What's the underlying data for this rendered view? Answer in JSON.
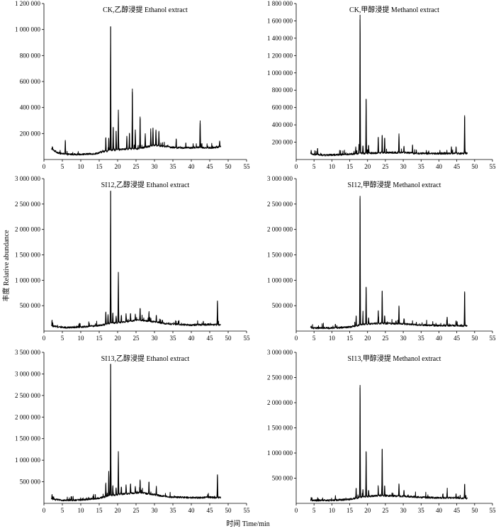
{
  "figure": {
    "ylabel": "丰度 Relative abundance",
    "xlabel": "时间 Time/min"
  },
  "chart_data": [
    {
      "type": "line",
      "title": "CK,乙醇浸提 Ethanol extract",
      "xlim": [
        0,
        55
      ],
      "xticks": [
        0,
        5,
        10,
        15,
        20,
        25,
        30,
        35,
        40,
        45,
        50,
        55
      ],
      "ylim": [
        0,
        1200000
      ],
      "yticks": [
        200000,
        400000,
        600000,
        800000,
        1000000,
        1200000
      ],
      "ytick_labels": [
        "200 000",
        "400 000",
        "600 000",
        "800 000",
        "1 000 000",
        "1 200 000"
      ],
      "x_range": [
        2,
        48
      ],
      "baseline": [
        [
          2,
          80000
        ],
        [
          4,
          50000
        ],
        [
          6,
          40000
        ],
        [
          10,
          40000
        ],
        [
          14,
          45000
        ],
        [
          16,
          60000
        ],
        [
          18,
          70000
        ],
        [
          22,
          80000
        ],
        [
          26,
          85000
        ],
        [
          30,
          110000
        ],
        [
          33,
          100000
        ],
        [
          36,
          90000
        ],
        [
          40,
          90000
        ],
        [
          42,
          95000
        ],
        [
          44,
          90000
        ],
        [
          46,
          90000
        ],
        [
          48,
          100000
        ]
      ],
      "peaks": [
        [
          2.3,
          100000
        ],
        [
          5.8,
          150000
        ],
        [
          16.8,
          170000
        ],
        [
          17.6,
          160000
        ],
        [
          18.1,
          1020000
        ],
        [
          18.8,
          250000
        ],
        [
          19.6,
          220000
        ],
        [
          20.2,
          360000
        ],
        [
          22.5,
          180000
        ],
        [
          23.2,
          200000
        ],
        [
          24.0,
          545000
        ],
        [
          24.8,
          230000
        ],
        [
          26.1,
          330000
        ],
        [
          27.5,
          200000
        ],
        [
          29.0,
          210000
        ],
        [
          29.6,
          240000
        ],
        [
          30.4,
          230000
        ],
        [
          31.2,
          220000
        ],
        [
          35.9,
          160000
        ],
        [
          42.4,
          300000
        ],
        [
          47.7,
          140000
        ]
      ]
    },
    {
      "type": "line",
      "title": "CK,甲醇浸提 Methanol extract",
      "xlim": [
        0,
        55
      ],
      "xticks": [
        0,
        5,
        10,
        15,
        20,
        25,
        30,
        35,
        40,
        45,
        50,
        55
      ],
      "ylim": [
        0,
        1800000
      ],
      "yticks": [
        200000,
        400000,
        600000,
        800000,
        1000000,
        1200000,
        1400000,
        1600000,
        1800000
      ],
      "ytick_labels": [
        "200 000",
        "400 000",
        "600 000",
        "800 000",
        "1 000 000",
        "1 200 000",
        "1 400 000",
        "1 600 000",
        "1 800 000"
      ],
      "x_range": [
        4,
        48
      ],
      "baseline": [
        [
          4,
          60000
        ],
        [
          8,
          50000
        ],
        [
          14,
          60000
        ],
        [
          18,
          70000
        ],
        [
          22,
          75000
        ],
        [
          26,
          80000
        ],
        [
          30,
          80000
        ],
        [
          34,
          70000
        ],
        [
          40,
          70000
        ],
        [
          44,
          70000
        ],
        [
          48,
          70000
        ]
      ],
      "peaks": [
        [
          4.2,
          110000
        ],
        [
          6.0,
          130000
        ],
        [
          16.7,
          150000
        ],
        [
          17.6,
          170000
        ],
        [
          17.9,
          1670000
        ],
        [
          18.7,
          160000
        ],
        [
          19.6,
          700000
        ],
        [
          20.3,
          160000
        ],
        [
          23.0,
          260000
        ],
        [
          24.1,
          280000
        ],
        [
          24.8,
          250000
        ],
        [
          28.8,
          300000
        ],
        [
          30.2,
          150000
        ],
        [
          32.6,
          160000
        ],
        [
          43.5,
          150000
        ],
        [
          44.8,
          150000
        ],
        [
          47.2,
          510000
        ]
      ]
    },
    {
      "type": "line",
      "title": "SI12,乙醇浸提 Ethanol extract",
      "xlim": [
        0,
        55
      ],
      "xticks": [
        0,
        5,
        10,
        15,
        20,
        25,
        30,
        35,
        40,
        45,
        50,
        55
      ],
      "ylim": [
        0,
        3000000
      ],
      "yticks": [
        500000,
        1000000,
        1500000,
        2000000,
        2500000,
        3000000
      ],
      "ytick_labels": [
        "500 000",
        "1 000 000",
        "1 500 000",
        "2 000 000",
        "2 500 000",
        "3 000 000"
      ],
      "x_range": [
        2,
        48
      ],
      "baseline": [
        [
          2,
          100000
        ],
        [
          5,
          70000
        ],
        [
          10,
          80000
        ],
        [
          15,
          110000
        ],
        [
          18,
          150000
        ],
        [
          22,
          180000
        ],
        [
          26,
          220000
        ],
        [
          30,
          180000
        ],
        [
          34,
          140000
        ],
        [
          40,
          120000
        ],
        [
          45,
          130000
        ],
        [
          48,
          120000
        ]
      ],
      "peaks": [
        [
          2.2,
          200000
        ],
        [
          16.8,
          380000
        ],
        [
          17.4,
          330000
        ],
        [
          18.1,
          2750000
        ],
        [
          18.7,
          350000
        ],
        [
          19.6,
          300000
        ],
        [
          20.2,
          1150000
        ],
        [
          21.0,
          300000
        ],
        [
          22.3,
          330000
        ],
        [
          23.5,
          350000
        ],
        [
          24.8,
          320000
        ],
        [
          26.1,
          450000
        ],
        [
          28.5,
          350000
        ],
        [
          30.5,
          300000
        ],
        [
          47.1,
          600000
        ]
      ]
    },
    {
      "type": "line",
      "title": "SI12,甲醇浸提 Methanol extract",
      "xlim": [
        0,
        55
      ],
      "xticks": [
        0,
        5,
        10,
        15,
        20,
        25,
        30,
        35,
        40,
        45,
        50,
        55
      ],
      "ylim": [
        0,
        3000000
      ],
      "yticks": [
        500000,
        1000000,
        1500000,
        2000000,
        2500000,
        3000000
      ],
      "ytick_labels": [
        "500 000",
        "1 000 000",
        "1 500 000",
        "2 000 000",
        "2 500 000",
        "3 000 000"
      ],
      "x_range": [
        4,
        48
      ],
      "baseline": [
        [
          4,
          60000
        ],
        [
          10,
          60000
        ],
        [
          15,
          80000
        ],
        [
          18,
          120000
        ],
        [
          22,
          150000
        ],
        [
          26,
          150000
        ],
        [
          30,
          140000
        ],
        [
          35,
          120000
        ],
        [
          40,
          110000
        ],
        [
          44,
          110000
        ],
        [
          48,
          100000
        ]
      ],
      "peaks": [
        [
          4.2,
          100000
        ],
        [
          11.0,
          140000
        ],
        [
          16.8,
          300000
        ],
        [
          17.9,
          2660000
        ],
        [
          18.7,
          300000
        ],
        [
          19.6,
          870000
        ],
        [
          20.3,
          250000
        ],
        [
          23.0,
          400000
        ],
        [
          24.1,
          790000
        ],
        [
          24.8,
          300000
        ],
        [
          28.8,
          500000
        ],
        [
          30.2,
          250000
        ],
        [
          42.3,
          280000
        ],
        [
          44.8,
          200000
        ],
        [
          47.2,
          780000
        ]
      ]
    },
    {
      "type": "line",
      "title": "SI13,乙醇浸提 Ethanol extract",
      "xlim": [
        0,
        55
      ],
      "xticks": [
        0,
        5,
        10,
        15,
        20,
        25,
        30,
        35,
        40,
        45,
        50,
        55
      ],
      "ylim": [
        0,
        3500000
      ],
      "yticks": [
        500000,
        1000000,
        1500000,
        2000000,
        2500000,
        3000000,
        3500000
      ],
      "ytick_labels": [
        "500 000",
        "1 000 000",
        "1 500 000",
        "2 000 000",
        "2 500 000",
        "3 000 000",
        "3 500 000"
      ],
      "x_range": [
        2,
        48
      ],
      "baseline": [
        [
          2,
          100000
        ],
        [
          5,
          70000
        ],
        [
          10,
          80000
        ],
        [
          15,
          120000
        ],
        [
          18,
          180000
        ],
        [
          22,
          220000
        ],
        [
          26,
          250000
        ],
        [
          30,
          200000
        ],
        [
          34,
          150000
        ],
        [
          40,
          130000
        ],
        [
          45,
          140000
        ],
        [
          48,
          130000
        ]
      ],
      "peaks": [
        [
          2.2,
          200000
        ],
        [
          16.8,
          480000
        ],
        [
          17.6,
          750000
        ],
        [
          18.1,
          3230000
        ],
        [
          18.7,
          400000
        ],
        [
          19.6,
          350000
        ],
        [
          20.2,
          1200000
        ],
        [
          21.0,
          380000
        ],
        [
          22.3,
          420000
        ],
        [
          23.5,
          450000
        ],
        [
          24.8,
          400000
        ],
        [
          26.1,
          550000
        ],
        [
          28.5,
          500000
        ],
        [
          30.5,
          350000
        ],
        [
          47.1,
          670000
        ]
      ]
    },
    {
      "type": "line",
      "title": "SI13,甲醇浸提 Methanol extract",
      "xlim": [
        0,
        55
      ],
      "xticks": [
        0,
        5,
        10,
        15,
        20,
        25,
        30,
        35,
        40,
        45,
        50,
        55
      ],
      "ylim": [
        0,
        3000000
      ],
      "yticks": [
        500000,
        1000000,
        1500000,
        2000000,
        2500000,
        3000000
      ],
      "ytick_labels": [
        "500 000",
        "1 000 000",
        "1 500 000",
        "2 000 000",
        "2 500 000",
        "3 000 000"
      ],
      "x_range": [
        4,
        48
      ],
      "baseline": [
        [
          4,
          60000
        ],
        [
          10,
          60000
        ],
        [
          15,
          80000
        ],
        [
          18,
          120000
        ],
        [
          22,
          150000
        ],
        [
          26,
          150000
        ],
        [
          30,
          140000
        ],
        [
          35,
          120000
        ],
        [
          40,
          110000
        ],
        [
          44,
          110000
        ],
        [
          48,
          100000
        ]
      ],
      "peaks": [
        [
          4.2,
          100000
        ],
        [
          11.0,
          130000
        ],
        [
          16.8,
          300000
        ],
        [
          17.9,
          2350000
        ],
        [
          18.7,
          280000
        ],
        [
          19.6,
          1020000
        ],
        [
          20.3,
          250000
        ],
        [
          23.0,
          300000
        ],
        [
          24.1,
          1080000
        ],
        [
          24.8,
          350000
        ],
        [
          28.8,
          380000
        ],
        [
          30.2,
          250000
        ],
        [
          42.3,
          240000
        ],
        [
          44.8,
          180000
        ],
        [
          47.2,
          380000
        ]
      ]
    }
  ]
}
